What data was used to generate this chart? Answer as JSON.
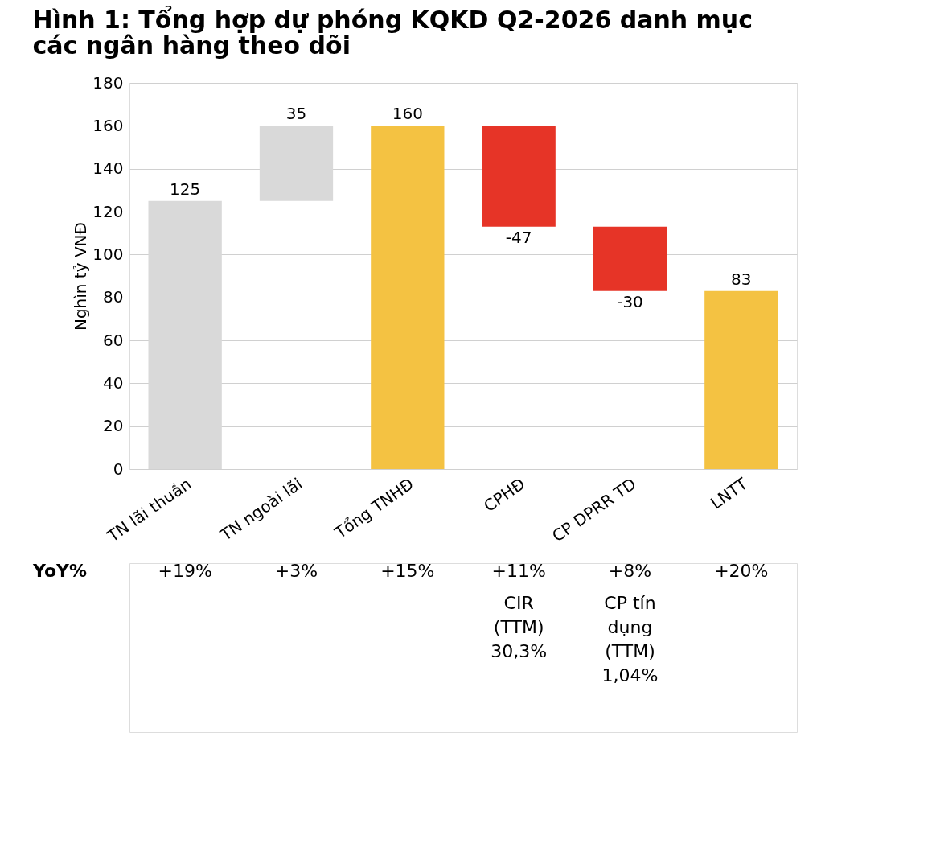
{
  "chart_data": {
    "type": "bar",
    "title": "Hình 1: Tổng hợp dự phóng KQKD Q2-2026 danh mục các ngân hàng theo dõi",
    "ylabel": "Nghìn tỷ VNĐ",
    "categories": [
      "TN lãi thuần",
      "TN ngoài lãi",
      "Tổng TNHĐ",
      "CPHĐ",
      "CP DPRR TD",
      "LNTT"
    ],
    "values": [
      125,
      35,
      160,
      -47,
      -30,
      83
    ],
    "base": [
      0,
      125,
      0,
      160,
      113,
      0
    ],
    "colors": [
      "#d9d9d9",
      "#d9d9d9",
      "#f4c242",
      "#e63427",
      "#e63427",
      "#f4c242"
    ],
    "ylim": [
      0,
      180
    ],
    "yticks": [
      0,
      20,
      40,
      60,
      80,
      100,
      120,
      140,
      160,
      180
    ],
    "grid": "y",
    "data_labels": true,
    "legend": false,
    "annotations": [
      "YoY%",
      "+19%",
      "+3%",
      "+15%",
      "+11%",
      "+8%",
      "+20%",
      "CIR\n(TTM)\n\n30,3%",
      "CP tín\ndụng\n(TTM)\n1,04%"
    ]
  }
}
